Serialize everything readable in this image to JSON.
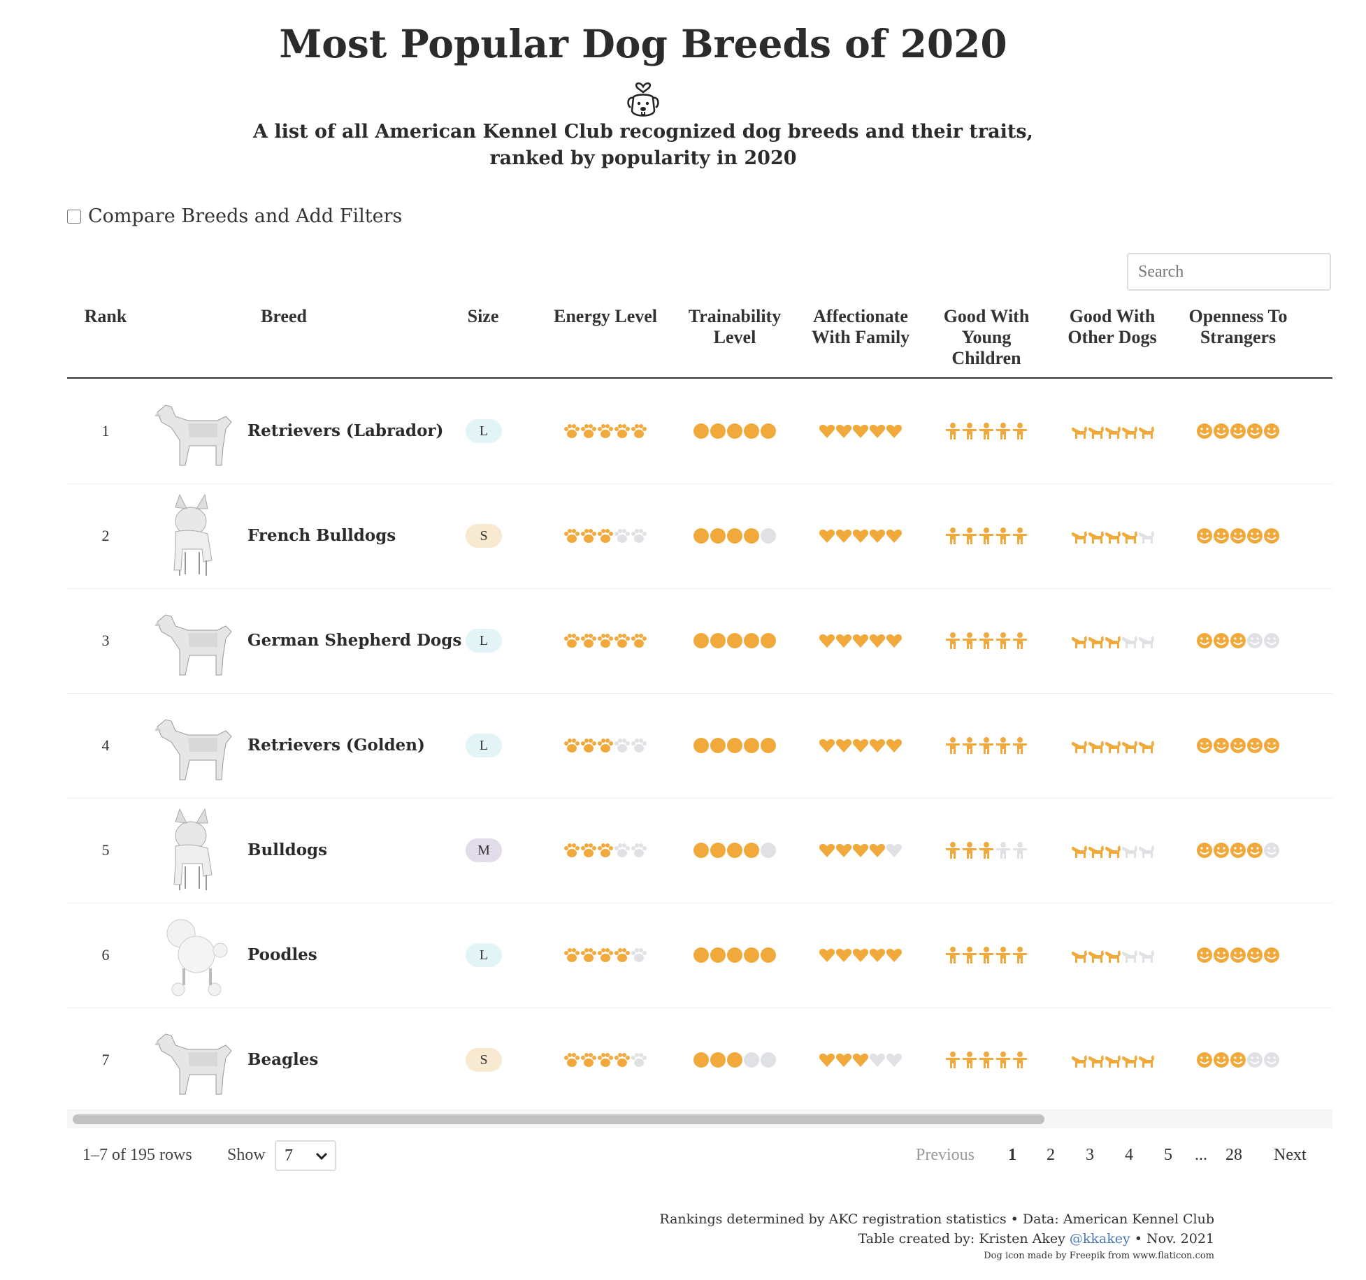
{
  "title": "Most Popular Dog Breeds of 2020",
  "subtitle_line1": "A list of all American Kennel Club recognized dog breeds and their traits,",
  "subtitle_line2": "ranked by popularity in 2020",
  "compare_label": "Compare Breeds and Add Filters",
  "search_placeholder": "Search",
  "columns": {
    "rank": "Rank",
    "breed": "Breed",
    "size": "Size",
    "energy": "Energy Level",
    "train_l1": "Trainability",
    "train_l2": "Level",
    "affect_l1": "Affectionate",
    "affect_l2": "With Family",
    "kids_l1": "Good With",
    "kids_l2": "Young",
    "kids_l3": "Children",
    "dogs_l1": "Good With",
    "dogs_l2": "Other Dogs",
    "strangers_l1": "Openness To",
    "strangers_l2": "Strangers"
  },
  "colors": {
    "rating_on": "#f0a93a",
    "rating_off": "#dfe1e4",
    "size_L": "#e3f4f7",
    "size_S": "#f7ead0",
    "size_M": "#e2dcea"
  },
  "rows": [
    {
      "rank": "1",
      "breed": "Retrievers (Labrador)",
      "size": "L",
      "energy": 5,
      "trainability": 5,
      "affectionate": 5,
      "kids": 5,
      "dogs": 5,
      "strangers": 5
    },
    {
      "rank": "2",
      "breed": "French Bulldogs",
      "size": "S",
      "energy": 3,
      "trainability": 4,
      "affectionate": 5,
      "kids": 5,
      "dogs": 4,
      "strangers": 5
    },
    {
      "rank": "3",
      "breed": "German Shepherd Dogs",
      "size": "L",
      "energy": 5,
      "trainability": 5,
      "affectionate": 5,
      "kids": 5,
      "dogs": 3,
      "strangers": 3
    },
    {
      "rank": "4",
      "breed": "Retrievers (Golden)",
      "size": "L",
      "energy": 3,
      "trainability": 5,
      "affectionate": 5,
      "kids": 5,
      "dogs": 5,
      "strangers": 5
    },
    {
      "rank": "5",
      "breed": "Bulldogs",
      "size": "M",
      "energy": 3,
      "trainability": 4,
      "affectionate": 4,
      "kids": 3,
      "dogs": 3,
      "strangers": 4
    },
    {
      "rank": "6",
      "breed": "Poodles",
      "size": "L",
      "energy": 4,
      "trainability": 5,
      "affectionate": 5,
      "kids": 5,
      "dogs": 3,
      "strangers": 5
    },
    {
      "rank": "7",
      "breed": "Beagles",
      "size": "S",
      "energy": 4,
      "trainability": 3,
      "affectionate": 3,
      "kids": 5,
      "dogs": 5,
      "strangers": 3
    }
  ],
  "pagination": {
    "info": "1–7 of 195 rows",
    "show_label": "Show",
    "show_value": "7",
    "previous": "Previous",
    "pages": [
      "1",
      "2",
      "3",
      "4",
      "5",
      "...",
      "28"
    ],
    "current": "1",
    "next": "Next"
  },
  "footer": {
    "line1": "Rankings determined by AKC registration statistics • Data: American Kennel Club",
    "line2_prefix": "Table created by: Kristen Akey ",
    "handle": "@kkakey",
    "line2_suffix": " • Nov. 2021",
    "line3": "Dog icon made by Freepik from www.flaticon.com"
  }
}
